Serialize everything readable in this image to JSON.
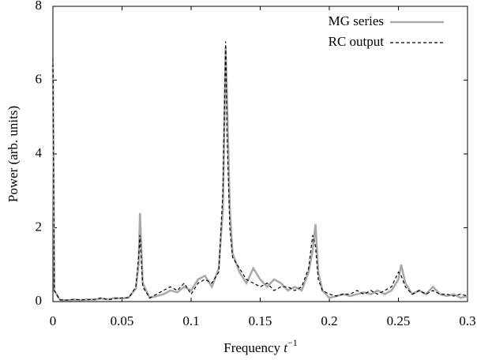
{
  "chart_data": {
    "type": "line",
    "xlabel": [
      "Frequency",
      "t",
      "−1"
    ],
    "ylabel": "Power (arb. units)",
    "x": [
      0,
      0.001,
      0.005,
      0.01,
      0.015,
      0.02,
      0.025,
      0.03,
      0.035,
      0.04,
      0.045,
      0.05,
      0.055,
      0.06,
      0.062,
      0.063,
      0.065,
      0.07,
      0.075,
      0.08,
      0.085,
      0.09,
      0.095,
      0.1,
      0.105,
      0.11,
      0.115,
      0.12,
      0.123,
      0.125,
      0.126,
      0.128,
      0.13,
      0.135,
      0.14,
      0.145,
      0.15,
      0.155,
      0.16,
      0.165,
      0.17,
      0.175,
      0.18,
      0.185,
      0.188,
      0.19,
      0.192,
      0.195,
      0.2,
      0.205,
      0.21,
      0.215,
      0.22,
      0.225,
      0.23,
      0.235,
      0.24,
      0.245,
      0.25,
      0.252,
      0.255,
      0.26,
      0.265,
      0.27,
      0.275,
      0.28,
      0.285,
      0.29,
      0.295,
      0.3
    ],
    "series": [
      {
        "name": "MG series",
        "color": "#a8a8a8",
        "style": "solid",
        "values": [
          6.4,
          0.3,
          0.05,
          0.03,
          0.05,
          0.04,
          0.06,
          0.05,
          0.08,
          0.06,
          0.1,
          0.08,
          0.12,
          0.35,
          1.0,
          2.4,
          0.5,
          0.1,
          0.15,
          0.2,
          0.3,
          0.25,
          0.4,
          0.3,
          0.6,
          0.7,
          0.4,
          0.9,
          2.5,
          6.9,
          5.5,
          2.5,
          1.3,
          0.8,
          0.5,
          0.9,
          0.6,
          0.4,
          0.6,
          0.5,
          0.3,
          0.4,
          0.3,
          0.8,
          1.4,
          2.1,
          0.8,
          0.3,
          0.1,
          0.15,
          0.2,
          0.15,
          0.2,
          0.25,
          0.2,
          0.3,
          0.2,
          0.3,
          0.6,
          1.0,
          0.5,
          0.2,
          0.3,
          0.2,
          0.4,
          0.2,
          0.15,
          0.2,
          0.1,
          0.15
        ]
      },
      {
        "name": "RC output",
        "color": "#000000",
        "style": "dashed",
        "values": [
          6.6,
          0.3,
          0.05,
          0.04,
          0.06,
          0.05,
          0.05,
          0.06,
          0.1,
          0.05,
          0.08,
          0.1,
          0.1,
          0.4,
          1.2,
          1.8,
          0.4,
          0.1,
          0.2,
          0.3,
          0.4,
          0.3,
          0.5,
          0.2,
          0.5,
          0.6,
          0.5,
          0.8,
          3.0,
          7.05,
          4.5,
          2.0,
          1.2,
          0.9,
          0.6,
          0.5,
          0.4,
          0.5,
          0.3,
          0.4,
          0.4,
          0.3,
          0.4,
          0.9,
          1.8,
          1.5,
          0.6,
          0.3,
          0.2,
          0.15,
          0.2,
          0.2,
          0.3,
          0.2,
          0.3,
          0.2,
          0.3,
          0.4,
          0.8,
          0.7,
          0.4,
          0.2,
          0.3,
          0.2,
          0.3,
          0.2,
          0.2,
          0.15,
          0.2,
          0.15
        ]
      }
    ],
    "xlim": [
      0,
      0.3
    ],
    "xticks": [
      0,
      0.05,
      0.1,
      0.15,
      0.2,
      0.25,
      0.3
    ],
    "ylim": [
      0,
      8
    ],
    "yticks": [
      0,
      2,
      4,
      6,
      8
    ],
    "grid": false,
    "legend": "upper right"
  }
}
